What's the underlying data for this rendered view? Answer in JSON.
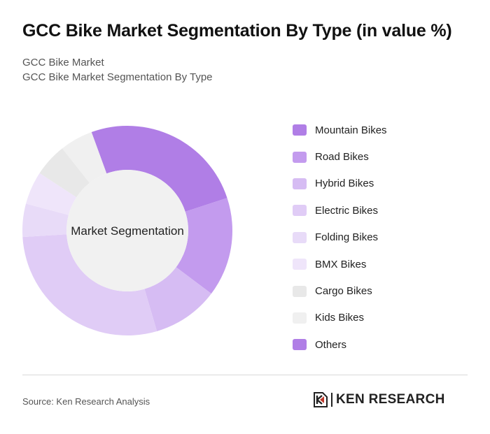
{
  "header": {
    "title": "GCC Bike Market Segmentation By Type (in value %)",
    "subtitle_line1": "GCC Bike Market",
    "subtitle_line2": "GCC Bike Market Segmentation By Type"
  },
  "chart_data": {
    "type": "pie",
    "style": "donut",
    "center_label": "Market Segmentation",
    "categories": [
      "Mountain Bikes",
      "Road Bikes",
      "Hybrid Bikes",
      "Electric Bikes",
      "Folding Bikes",
      "BMX Bikes",
      "Cargo Bikes",
      "Kids Bikes",
      "Others"
    ],
    "values": [
      25,
      15,
      10,
      28,
      5,
      5,
      5,
      5,
      0
    ],
    "colors": [
      "#b07ee6",
      "#c39bee",
      "#d6bcf3",
      "#e0ccf6",
      "#e8dbf8",
      "#efe5fa",
      "#e8e8e8",
      "#f0f0f0",
      "#b07ee6"
    ],
    "legend_position": "right"
  },
  "footer": {
    "source": "Source: Ken Research Analysis",
    "logo_text": "KEN RESEARCH"
  }
}
